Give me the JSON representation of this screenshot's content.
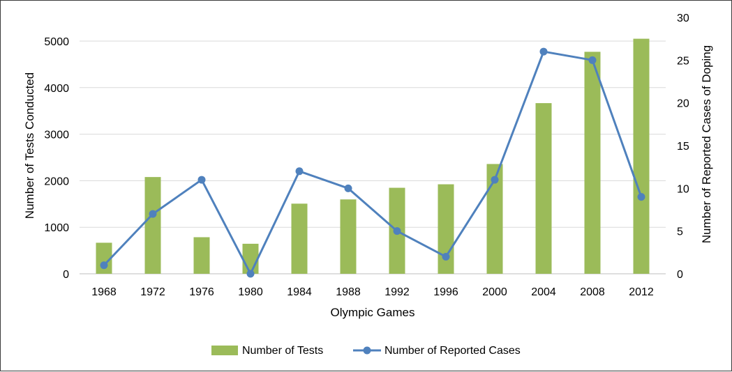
{
  "chart_data": {
    "type": "bar+line",
    "title": "",
    "xlabel": "Olympic Games",
    "ylabel_left": "Number of Tests Conducted",
    "ylabel_right": "Number of Reported Cases of Doping",
    "categories": [
      "1968",
      "1972",
      "1976",
      "1980",
      "1984",
      "1988",
      "1992",
      "1996",
      "2000",
      "2004",
      "2008",
      "2012"
    ],
    "ylim_left": [
      0,
      5000
    ],
    "yticks_left": [
      "0",
      "1000",
      "2000",
      "3000",
      "4000",
      "5000"
    ],
    "ylim_right": [
      0,
      30
    ],
    "yticks_right": [
      "0",
      "5",
      "10",
      "15",
      "20",
      "25",
      "30"
    ],
    "grid": true,
    "legend_position": "bottom",
    "series": [
      {
        "name": "Number of Tests",
        "type": "bar",
        "axis": "left",
        "color": "#9bbb59",
        "values": [
          667,
          2079,
          786,
          645,
          1507,
          1598,
          1848,
          1923,
          2359,
          3667,
          4770,
          5051
        ]
      },
      {
        "name": "Number of Reported Cases",
        "type": "line",
        "axis": "right",
        "color": "#4f81bd",
        "values": [
          1,
          7,
          11,
          0,
          12,
          10,
          5,
          2,
          11,
          26,
          25,
          9
        ]
      }
    ]
  }
}
